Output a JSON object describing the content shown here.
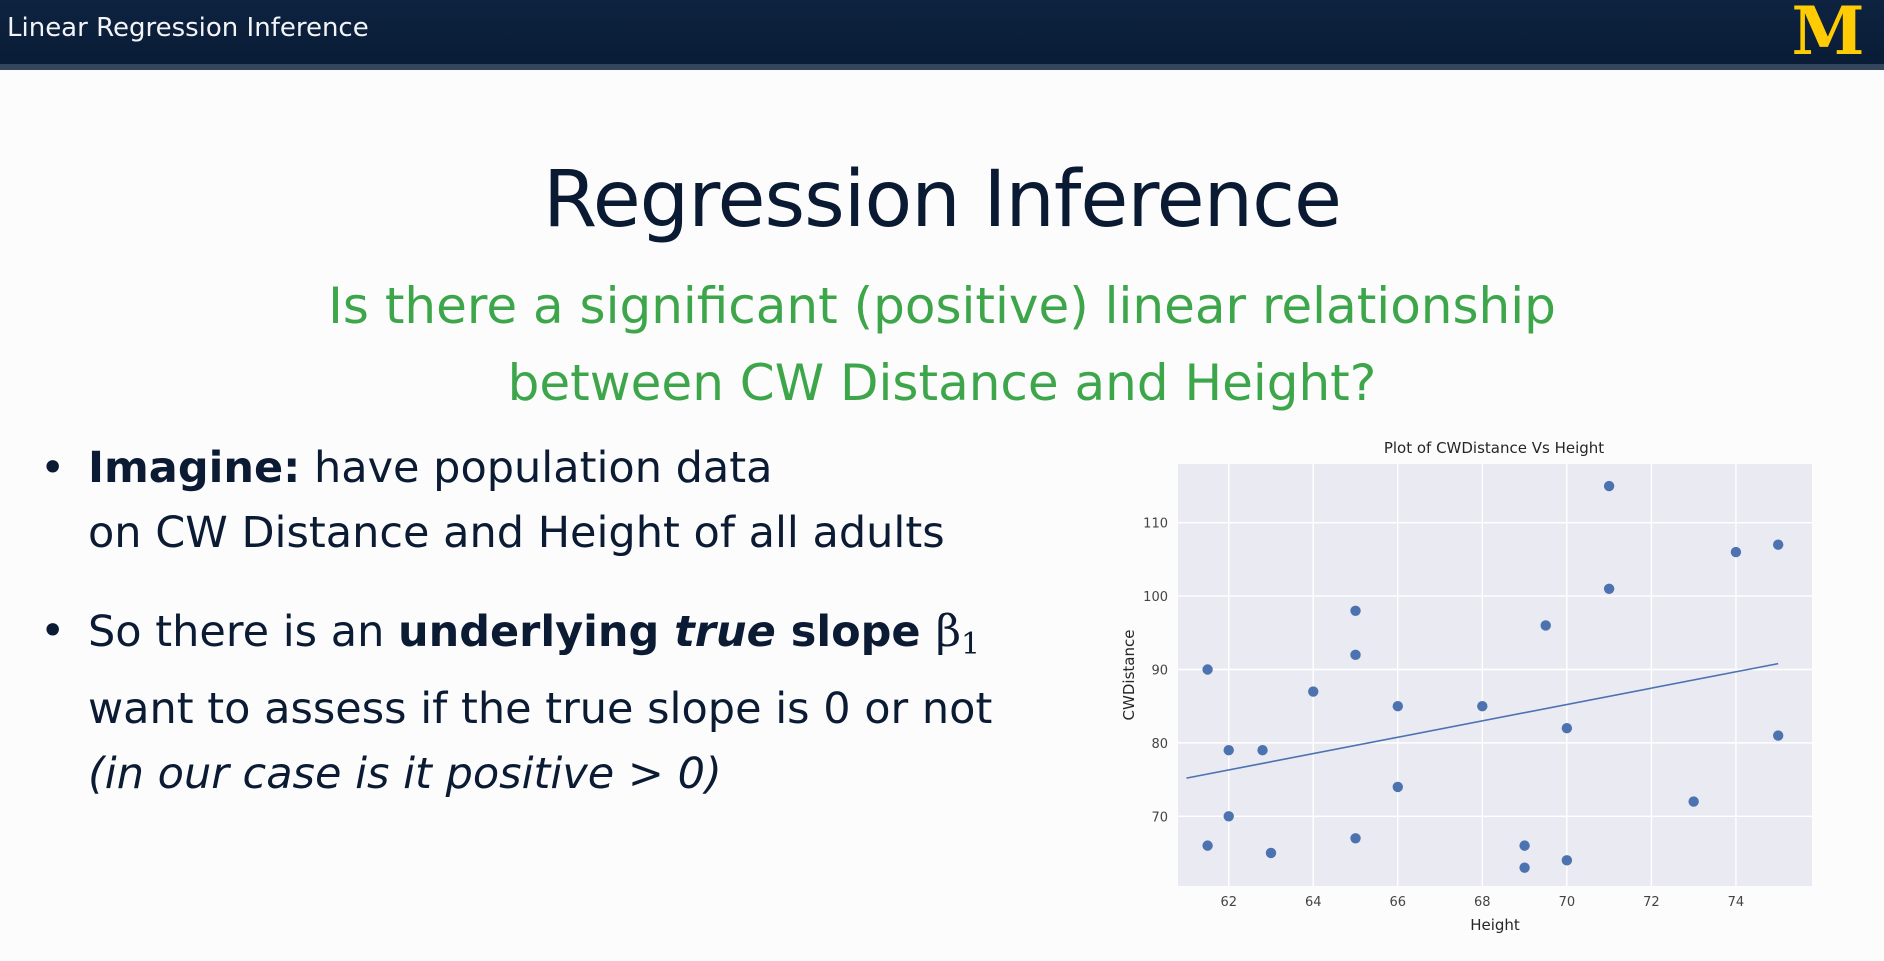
{
  "header": {
    "title": "Linear Regression Inference",
    "logo_text": "M"
  },
  "slide": {
    "title": "Regression Inference",
    "question_line1": "Is there a significant (positive) linear relationship",
    "question_line2": "between CW Distance and Height?",
    "bullet_marker": "•",
    "bullet1": {
      "bold": "Imagine:",
      "text1": " have population data",
      "text2": "on CW Distance and Height of all adults"
    },
    "bullet2": {
      "text1": "So there is an ",
      "bold1": "underlying ",
      "bolditalic": "true",
      "bold2": " slope ",
      "beta": "β",
      "beta_sub": "1",
      "text2": "want to assess if the true slope is 0 or not",
      "italic": "(in our case is it positive > 0)"
    }
  },
  "colors": {
    "header_bg": "#0d2340",
    "logo": "#ffcb05",
    "question": "#3ea64a",
    "plot_bg": "#eaeaf2",
    "points": "#4c72b0"
  },
  "chart_data": {
    "type": "scatter",
    "title": "Plot of CWDistance Vs Height",
    "xlabel": "Height",
    "ylabel": "CWDistance",
    "xlim": [
      60.8,
      75.8
    ],
    "ylim": [
      60.5,
      118
    ],
    "xticks": [
      62,
      64,
      66,
      68,
      70,
      72,
      74
    ],
    "yticks": [
      70,
      80,
      90,
      100,
      110
    ],
    "grid": true,
    "points": [
      {
        "x": 61.5,
        "y": 90
      },
      {
        "x": 61.5,
        "y": 66
      },
      {
        "x": 62,
        "y": 79
      },
      {
        "x": 62,
        "y": 70
      },
      {
        "x": 62.8,
        "y": 79
      },
      {
        "x": 63,
        "y": 65
      },
      {
        "x": 64,
        "y": 87
      },
      {
        "x": 65,
        "y": 98
      },
      {
        "x": 65,
        "y": 92
      },
      {
        "x": 65,
        "y": 67
      },
      {
        "x": 66,
        "y": 85
      },
      {
        "x": 66,
        "y": 74
      },
      {
        "x": 68,
        "y": 85
      },
      {
        "x": 69,
        "y": 66
      },
      {
        "x": 69,
        "y": 63
      },
      {
        "x": 69.5,
        "y": 96
      },
      {
        "x": 70,
        "y": 82
      },
      {
        "x": 70,
        "y": 64
      },
      {
        "x": 71,
        "y": 115
      },
      {
        "x": 71,
        "y": 101
      },
      {
        "x": 73,
        "y": 72
      },
      {
        "x": 74,
        "y": 106
      },
      {
        "x": 75,
        "y": 107
      },
      {
        "x": 75,
        "y": 81
      }
    ],
    "fit_line": {
      "x": [
        61,
        75
      ],
      "y": [
        75.2,
        90.8
      ]
    }
  }
}
